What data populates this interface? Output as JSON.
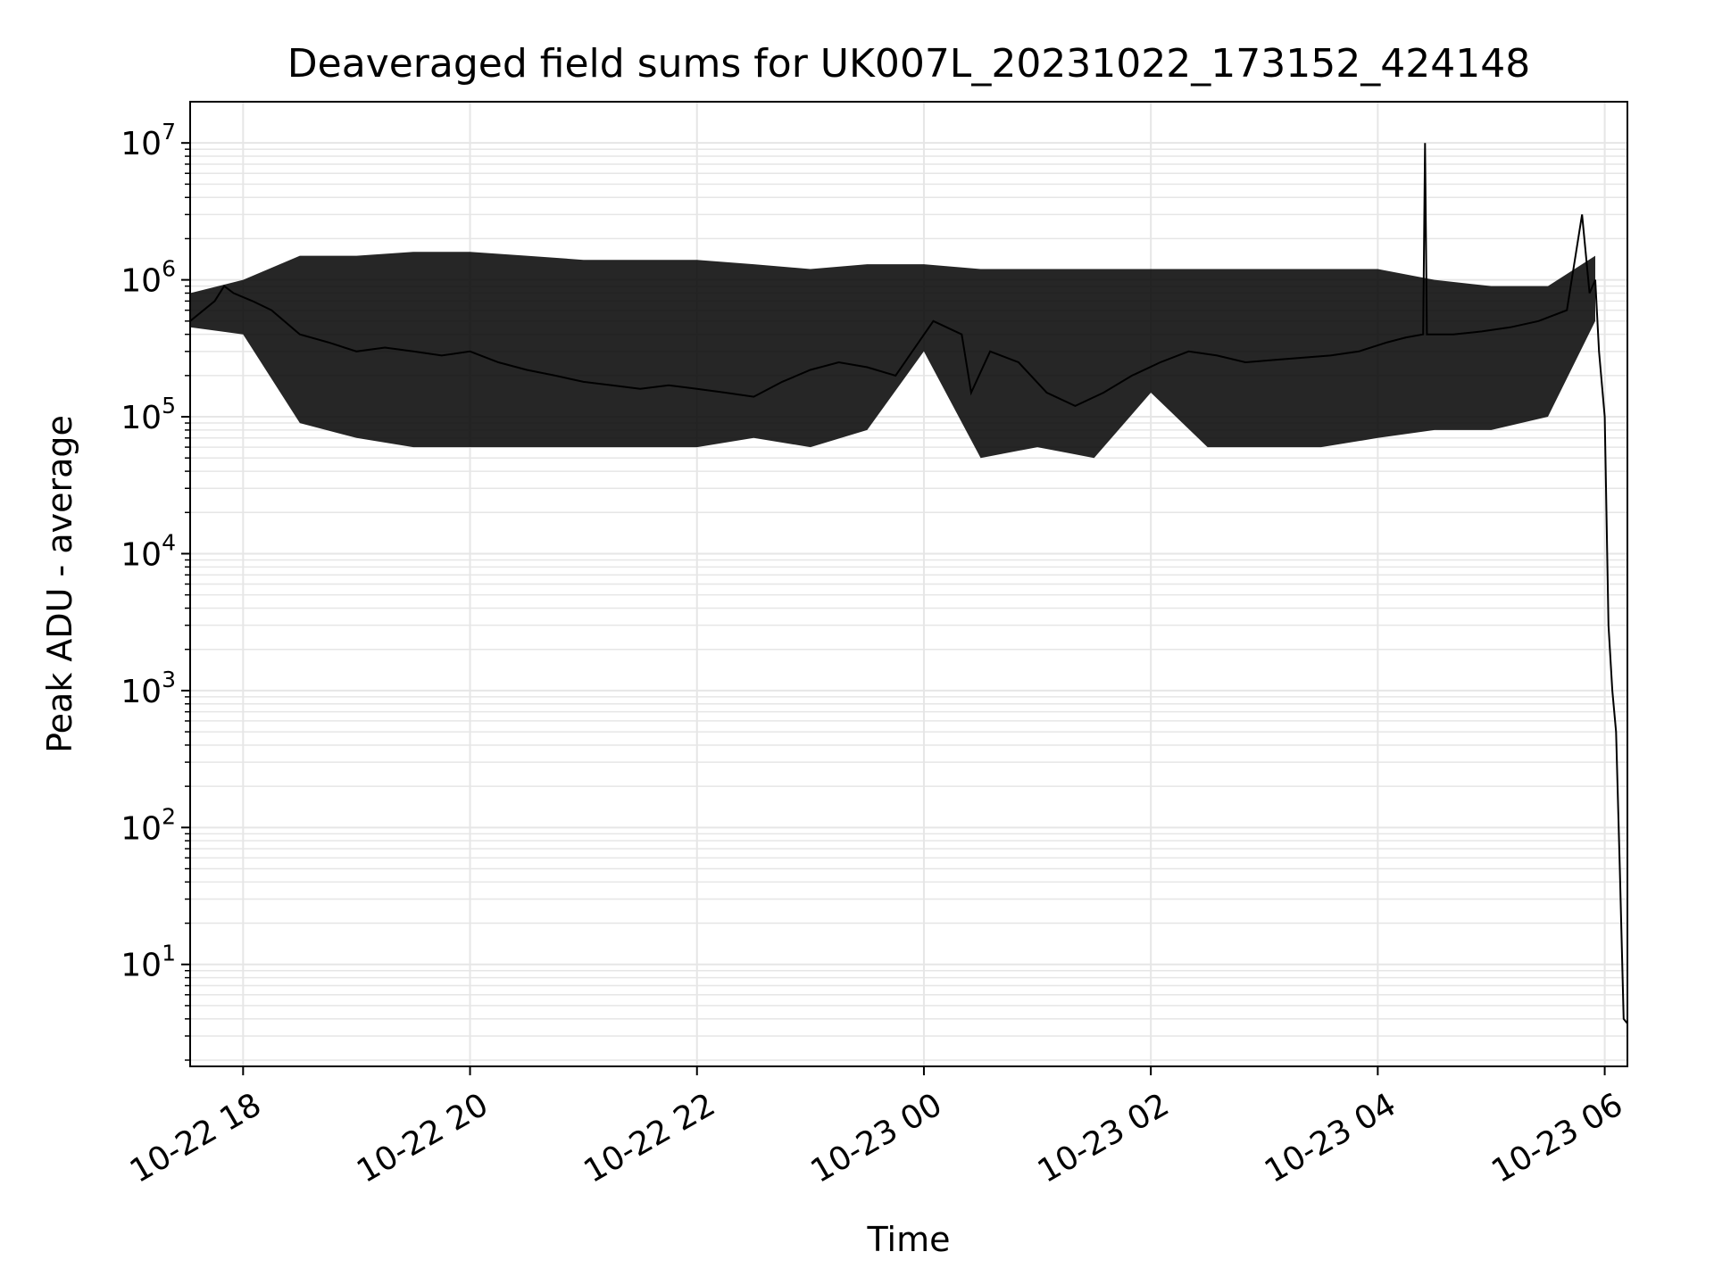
{
  "chart_data": {
    "type": "line",
    "title": "Deaveraged field sums for UK007L_20231022_173152_424148",
    "xlabel": "Time",
    "ylabel": "Peak ADU - average",
    "y_scale": "log",
    "ylim": [
      1.8,
      20000000
    ],
    "xlim": [
      "2023-10-22 17:32",
      "2023-10-23 06:12"
    ],
    "grid": true,
    "line_color": "#000000",
    "grid_color": "#e6e6e6",
    "x_ticks": [
      {
        "value": "2023-10-22 18:00",
        "label": "10-22 18"
      },
      {
        "value": "2023-10-22 20:00",
        "label": "10-22 20"
      },
      {
        "value": "2023-10-22 22:00",
        "label": "10-22 22"
      },
      {
        "value": "2023-10-23 00:00",
        "label": "10-23 00"
      },
      {
        "value": "2023-10-23 02:00",
        "label": "10-23 02"
      },
      {
        "value": "2023-10-23 04:00",
        "label": "10-23 04"
      },
      {
        "value": "2023-10-23 06:00",
        "label": "10-23 06"
      }
    ],
    "y_ticks": [
      {
        "value": 10,
        "base": "10",
        "exp": "1"
      },
      {
        "value": 100,
        "base": "10",
        "exp": "2"
      },
      {
        "value": 1000,
        "base": "10",
        "exp": "3"
      },
      {
        "value": 10000,
        "base": "10",
        "exp": "4"
      },
      {
        "value": 100000,
        "base": "10",
        "exp": "5"
      },
      {
        "value": 1000000,
        "base": "10",
        "exp": "6"
      },
      {
        "value": 10000000,
        "base": "10",
        "exp": "7"
      }
    ],
    "series": [
      {
        "x": [
          "2023-10-22 17:32",
          "2023-10-22 17:45",
          "2023-10-22 17:50",
          "2023-10-22 17:55",
          "2023-10-22 18:05",
          "2023-10-22 18:15",
          "2023-10-22 18:30",
          "2023-10-22 18:45",
          "2023-10-22 19:00",
          "2023-10-22 19:15",
          "2023-10-22 19:30",
          "2023-10-22 19:45",
          "2023-10-22 20:00",
          "2023-10-22 20:15",
          "2023-10-22 20:30",
          "2023-10-22 20:45",
          "2023-10-22 21:00",
          "2023-10-22 21:15",
          "2023-10-22 21:30",
          "2023-10-22 21:45",
          "2023-10-22 22:00",
          "2023-10-22 22:15",
          "2023-10-22 22:30",
          "2023-10-22 22:45",
          "2023-10-22 23:00",
          "2023-10-22 23:15",
          "2023-10-22 23:30",
          "2023-10-22 23:45",
          "2023-10-23 00:05",
          "2023-10-23 00:20",
          "2023-10-23 00:25",
          "2023-10-23 00:35",
          "2023-10-23 00:50",
          "2023-10-23 01:05",
          "2023-10-23 01:20",
          "2023-10-23 01:35",
          "2023-10-23 01:50",
          "2023-10-23 02:05",
          "2023-10-23 02:20",
          "2023-10-23 02:35",
          "2023-10-23 02:50",
          "2023-10-23 03:05",
          "2023-10-23 03:20",
          "2023-10-23 03:35",
          "2023-10-23 03:50",
          "2023-10-23 04:05",
          "2023-10-23 04:15",
          "2023-10-23 04:24",
          "2023-10-23 04:25",
          "2023-10-23 04:26",
          "2023-10-23 04:40",
          "2023-10-23 04:55",
          "2023-10-23 05:10",
          "2023-10-23 05:25",
          "2023-10-23 05:40",
          "2023-10-23 05:48",
          "2023-10-23 05:52",
          "2023-10-23 05:55",
          "2023-10-23 05:57",
          "2023-10-23 06:00",
          "2023-10-23 06:02",
          "2023-10-23 06:04",
          "2023-10-23 06:06",
          "2023-10-23 06:08",
          "2023-10-23 06:10",
          "2023-10-23 06:12"
        ],
        "y": [
          500000,
          700000,
          900000,
          800000,
          700000,
          600000,
          400000,
          350000,
          300000,
          320000,
          300000,
          280000,
          300000,
          250000,
          220000,
          200000,
          180000,
          170000,
          160000,
          170000,
          160000,
          150000,
          140000,
          180000,
          220000,
          250000,
          230000,
          200000,
          500000,
          400000,
          150000,
          300000,
          250000,
          150000,
          120000,
          150000,
          200000,
          250000,
          300000,
          280000,
          250000,
          260000,
          270000,
          280000,
          300000,
          350000,
          380000,
          400000,
          10000000,
          400000,
          400000,
          420000,
          450000,
          500000,
          600000,
          3000000,
          800000,
          1000000,
          300000,
          100000,
          3000,
          1000,
          500,
          50,
          4,
          3.7
        ]
      }
    ],
    "band": {
      "x": [
        "2023-10-22 17:32",
        "2023-10-22 18:00",
        "2023-10-22 18:30",
        "2023-10-22 19:00",
        "2023-10-22 19:30",
        "2023-10-22 20:00",
        "2023-10-22 20:30",
        "2023-10-22 21:00",
        "2023-10-22 21:30",
        "2023-10-22 22:00",
        "2023-10-22 22:30",
        "2023-10-22 23:00",
        "2023-10-22 23:30",
        "2023-10-23 00:00",
        "2023-10-23 00:30",
        "2023-10-23 01:00",
        "2023-10-23 01:30",
        "2023-10-23 02:00",
        "2023-10-23 02:30",
        "2023-10-23 03:00",
        "2023-10-23 03:30",
        "2023-10-23 04:00",
        "2023-10-23 04:30",
        "2023-10-23 05:00",
        "2023-10-23 05:30",
        "2023-10-23 05:55"
      ],
      "upper": [
        800000,
        1000000,
        1500000,
        1500000,
        1600000,
        1600000,
        1500000,
        1400000,
        1400000,
        1400000,
        1300000,
        1200000,
        1300000,
        1300000,
        1200000,
        1200000,
        1200000,
        1200000,
        1200000,
        1200000,
        1200000,
        1200000,
        1000000,
        900000,
        900000,
        1500000
      ],
      "lower": [
        450000,
        400000,
        90000,
        70000,
        60000,
        60000,
        60000,
        60000,
        60000,
        60000,
        70000,
        60000,
        80000,
        300000,
        50000,
        60000,
        50000,
        150000,
        60000,
        60000,
        60000,
        70000,
        80000,
        80000,
        100000,
        500000
      ]
    }
  }
}
